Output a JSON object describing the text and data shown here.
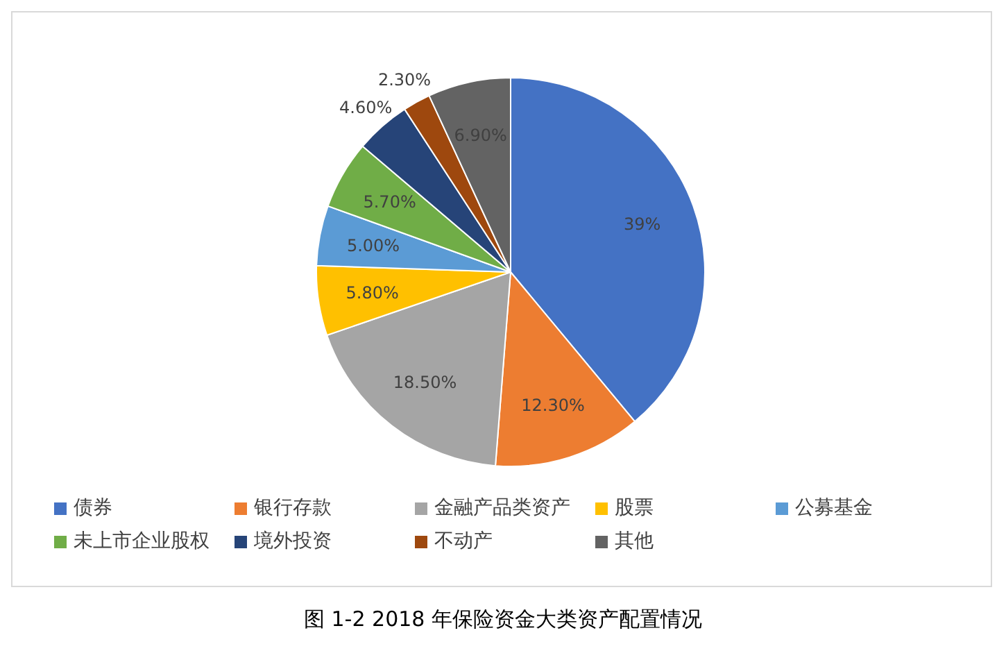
{
  "chart_data": {
    "type": "pie",
    "categories": [
      "债券",
      "银行存款",
      "金融产品类资产",
      "股票",
      "公募基金",
      "未上市企业股权",
      "境外投资",
      "不动产",
      "其他"
    ],
    "values": [
      39,
      12.3,
      18.5,
      5.8,
      5.0,
      5.7,
      4.6,
      2.3,
      6.9
    ],
    "value_labels": [
      "39%",
      "12.30%",
      "18.50%",
      "5.80%",
      "5.00%",
      "5.70%",
      "4.60%",
      "2.30%",
      "6.90%"
    ],
    "colors": [
      "#4472c4",
      "#ed7d31",
      "#a5a5a5",
      "#ffc000",
      "#5b9bd5",
      "#70ad47",
      "#264478",
      "#9e480e",
      "#636363"
    ],
    "legend": "bottom",
    "annotations": [
      "图 1-2 2018 年保险资金大类资产配置情况"
    ]
  }
}
